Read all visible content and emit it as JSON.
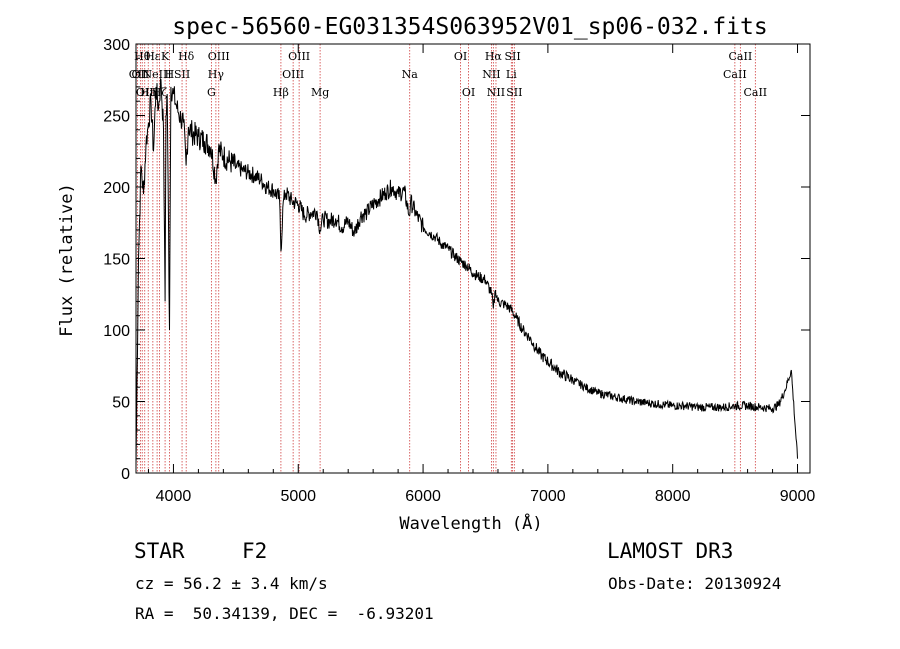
{
  "chart_data": {
    "type": "line",
    "title": "spec-56560-EG031354S063952V01_sp06-032.fits",
    "xlabel": "Wavelength (Å)",
    "ylabel": "Flux (relative)",
    "xlim": [
      3700,
      9100
    ],
    "ylim": [
      0,
      300
    ],
    "xticks": [
      "4000",
      "5000",
      "6000",
      "7000",
      "8000",
      "9000"
    ],
    "yticks": [
      "0",
      "50",
      "100",
      "150",
      "200",
      "250",
      "300"
    ],
    "series": [
      {
        "x": [
          3700,
          3720,
          3740,
          3760,
          3780,
          3800,
          3820,
          3840,
          3860,
          3880,
          3900,
          3920,
          3933,
          3940,
          3950,
          3968,
          3980,
          4000,
          4020,
          4040,
          4060,
          4080,
          4101,
          4120,
          4150,
          4200,
          4250,
          4300,
          4340,
          4360,
          4400,
          4450,
          4500,
          4550,
          4600,
          4650,
          4700,
          4750,
          4800,
          4850,
          4861,
          4880,
          4900,
          4950,
          5000,
          5050,
          5100,
          5150,
          5175,
          5200,
          5250,
          5300,
          5350,
          5400,
          5450,
          5500,
          5550,
          5600,
          5650,
          5700,
          5750,
          5800,
          5850,
          5890,
          5900,
          5950,
          6000,
          6050,
          6100,
          6150,
          6200,
          6250,
          6300,
          6350,
          6400,
          6450,
          6500,
          6550,
          6563,
          6580,
          6600,
          6650,
          6700,
          6750,
          6800,
          6850,
          6900,
          6950,
          7000,
          7100,
          7200,
          7300,
          7400,
          7500,
          7600,
          7700,
          7800,
          7900,
          8000,
          8100,
          8200,
          8300,
          8400,
          8500,
          8600,
          8700,
          8800,
          8850,
          8900,
          8950,
          9000
        ],
        "y": [
          5,
          150,
          215,
          195,
          230,
          245,
          260,
          225,
          270,
          255,
          275,
          240,
          120,
          250,
          265,
          100,
          270,
          265,
          258,
          252,
          248,
          245,
          215,
          242,
          238,
          235,
          232,
          228,
          205,
          226,
          222,
          218,
          214,
          212,
          210,
          208,
          205,
          200,
          198,
          192,
          155,
          190,
          196,
          190,
          188,
          180,
          182,
          183,
          170,
          178,
          176,
          178,
          172,
          176,
          168,
          180,
          182,
          188,
          192,
          196,
          200,
          195,
          197,
          180,
          190,
          180,
          172,
          168,
          165,
          160,
          157,
          152,
          148,
          145,
          140,
          137,
          135,
          125,
          115,
          128,
          120,
          118,
          115,
          108,
          100,
          95,
          88,
          82,
          78,
          70,
          65,
          60,
          56,
          54,
          52,
          50,
          49,
          48,
          47,
          47,
          46,
          46,
          46,
          47,
          47,
          46,
          45,
          48,
          58,
          72,
          10
        ]
      }
    ],
    "lines": [
      {
        "x": 3713,
        "row": 1,
        "label": "OII"
      },
      {
        "x": 3735,
        "row": 1,
        "label": "OII"
      },
      {
        "x": 3750,
        "row": 0,
        "label": "Hθ"
      },
      {
        "x": 3770,
        "row": 2,
        "label": "OII"
      },
      {
        "x": 3798,
        "row": 2,
        "label": "Hη"
      },
      {
        "x": 3835,
        "row": 0,
        "label": "Hε"
      },
      {
        "x": 3869,
        "row": 1,
        "label": "NeIII"
      },
      {
        "x": 3889,
        "row": 2,
        "label": "Hζ"
      },
      {
        "x": 3933,
        "row": 0,
        "label": "K"
      },
      {
        "x": 3968,
        "row": 1,
        "label": "H"
      },
      {
        "x": 4069,
        "row": 1,
        "label": "SII"
      },
      {
        "x": 4102,
        "row": 0,
        "label": "Hδ"
      },
      {
        "x": 4304,
        "row": 2,
        "label": "G"
      },
      {
        "x": 4340,
        "row": 1,
        "label": "Hγ"
      },
      {
        "x": 4363,
        "row": 0,
        "label": "OIII"
      },
      {
        "x": 4861,
        "row": 2,
        "label": "Hβ"
      },
      {
        "x": 4959,
        "row": 1,
        "label": "OIII"
      },
      {
        "x": 5007,
        "row": 0,
        "label": "OIII"
      },
      {
        "x": 5175,
        "row": 2,
        "label": "Mg"
      },
      {
        "x": 5893,
        "row": 1,
        "label": "Na"
      },
      {
        "x": 6300,
        "row": 0,
        "label": "OI"
      },
      {
        "x": 6364,
        "row": 2,
        "label": "OI"
      },
      {
        "x": 6548,
        "row": 1,
        "label": "NII"
      },
      {
        "x": 6563,
        "row": 0,
        "label": "Hα"
      },
      {
        "x": 6584,
        "row": 2,
        "label": "NII"
      },
      {
        "x": 6707,
        "row": 1,
        "label": "Li"
      },
      {
        "x": 6717,
        "row": 0,
        "label": "SII"
      },
      {
        "x": 6731,
        "row": 2,
        "label": "SII"
      },
      {
        "x": 8498,
        "row": 1,
        "label": "CaII"
      },
      {
        "x": 8542,
        "row": 0,
        "label": "CaII"
      },
      {
        "x": 8662,
        "row": 2,
        "label": "CaII"
      }
    ]
  },
  "info": {
    "class": "STAR",
    "subclass": "F2",
    "survey": "LAMOST DR3",
    "cz": "cz = 56.2 ± 3.4 km/s",
    "obsdate": "Obs-Date: 20130924",
    "radec": "RA =  50.34139, DEC =  -6.93201"
  }
}
